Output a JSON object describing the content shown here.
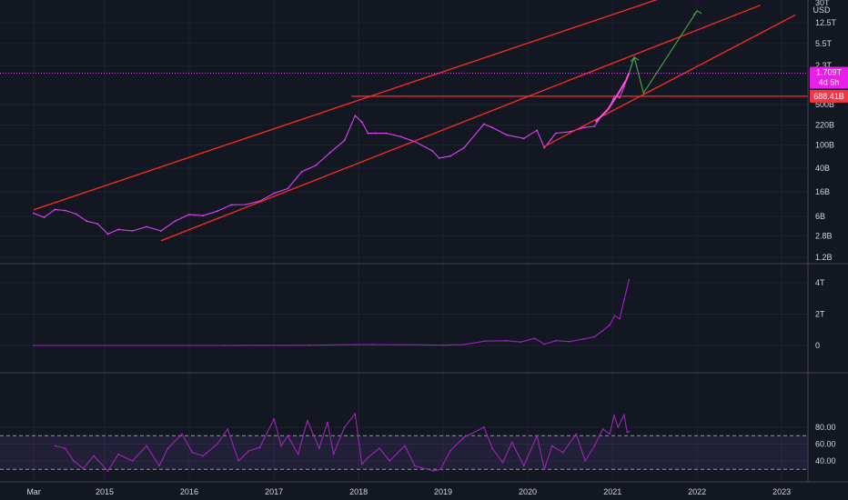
{
  "chart_data": [
    {
      "type": "line",
      "panel": "price",
      "scale": "log",
      "currency_label": "USD",
      "ylim": [
        1000000000.0,
        30000000000000.0
      ],
      "y_ticks": [
        {
          "label": "30T",
          "value": 30000000000000.0
        },
        {
          "label": "12.5T",
          "value": 12500000000000.0
        },
        {
          "label": "5.5T",
          "value": 5500000000000.0
        },
        {
          "label": "2.3T",
          "value": 2300000000000.0
        },
        {
          "label": "500B",
          "value": 500000000000.0
        },
        {
          "label": "220B",
          "value": 220000000000.0
        },
        {
          "label": "100B",
          "value": 100000000000.0
        },
        {
          "label": "40B",
          "value": 40000000000.0
        },
        {
          "label": "16B",
          "value": 16000000000.0
        },
        {
          "label": "6B",
          "value": 6000000000.0
        },
        {
          "label": "2.8B",
          "value": 2800000000.0
        },
        {
          "label": "1.2B",
          "value": 1200000000.0
        }
      ],
      "last_price_tag": {
        "label": "1.709T",
        "sub_label": "4d 5h",
        "value": 1709000000000.0,
        "color": "#e91ee9"
      },
      "level_tag": {
        "label": "688.41B",
        "value": 688410000000.0,
        "color": "#f23645"
      },
      "series": [
        {
          "color": "#e040fb",
          "points": [
            [
              "2014-03-01",
              6800000000.0
            ],
            [
              "2014-04-15",
              5800000000.0
            ],
            [
              "2014-06-01",
              7900000000.0
            ],
            [
              "2014-07-15",
              7600000000.0
            ],
            [
              "2014-09-01",
              6600000000.0
            ],
            [
              "2014-10-15",
              5000000000.0
            ],
            [
              "2014-12-01",
              4500000000.0
            ],
            [
              "2015-01-15",
              3000000000.0
            ],
            [
              "2015-03-01",
              3600000000.0
            ],
            [
              "2015-05-01",
              3400000000.0
            ],
            [
              "2015-07-01",
              4000000000.0
            ],
            [
              "2015-09-01",
              3400000000.0
            ],
            [
              "2015-11-01",
              5000000000.0
            ],
            [
              "2016-01-01",
              6500000000.0
            ],
            [
              "2016-03-01",
              6200000000.0
            ],
            [
              "2016-05-01",
              7400000000.0
            ],
            [
              "2016-07-01",
              9500000000.0
            ],
            [
              "2016-09-01",
              9600000000.0
            ],
            [
              "2016-11-01",
              11000000000.0
            ],
            [
              "2017-01-01",
              15000000000.0
            ],
            [
              "2017-03-01",
              18000000000.0
            ],
            [
              "2017-05-01",
              35000000000.0
            ],
            [
              "2017-07-01",
              45000000000.0
            ],
            [
              "2017-09-01",
              75000000000.0
            ],
            [
              "2017-11-01",
              120000000000.0
            ],
            [
              "2017-12-17",
              320000000000.0
            ],
            [
              "2018-01-15",
              250000000000.0
            ],
            [
              "2018-02-10",
              160000000000.0
            ],
            [
              "2018-03-15",
              160000000000.0
            ],
            [
              "2018-05-01",
              160000000000.0
            ],
            [
              "2018-07-01",
              140000000000.0
            ],
            [
              "2018-09-01",
              115000000000.0
            ],
            [
              "2018-11-15",
              80000000000.0
            ],
            [
              "2018-12-15",
              60000000000.0
            ],
            [
              "2019-02-01",
              65000000000.0
            ],
            [
              "2019-04-01",
              90000000000.0
            ],
            [
              "2019-06-26",
              230000000000.0
            ],
            [
              "2019-08-01",
              200000000000.0
            ],
            [
              "2019-10-01",
              150000000000.0
            ],
            [
              "2019-12-15",
              130000000000.0
            ],
            [
              "2020-02-10",
              180000000000.0
            ],
            [
              "2020-03-13",
              90000000000.0
            ],
            [
              "2020-05-01",
              160000000000.0
            ],
            [
              "2020-07-01",
              170000000000.0
            ],
            [
              "2020-09-01",
              200000000000.0
            ],
            [
              "2020-10-15",
              210000000000.0
            ],
            [
              "2020-11-20",
              340000000000.0
            ],
            [
              "2020-12-20",
              450000000000.0
            ],
            [
              "2021-01-10",
              700000000000.0
            ],
            [
              "2021-02-01",
              650000000000.0
            ],
            [
              "2021-02-20",
              1000000000000.0
            ],
            [
              "2021-03-13",
              1709000000000.0
            ]
          ]
        }
      ]
    },
    {
      "type": "line",
      "panel": "indicator",
      "ylim": [
        -700000000000.0,
        4500000000000.0
      ],
      "y_ticks": [
        {
          "label": "4T",
          "value": 4000000000000.0
        },
        {
          "label": "2T",
          "value": 2000000000000.0
        },
        {
          "label": "0",
          "value": 0
        }
      ],
      "series": [
        {
          "color": "#a020c8",
          "points": [
            [
              "2014-03-01",
              0
            ],
            [
              "2016-06-01",
              2000000000.0
            ],
            [
              "2017-06-01",
              10000000000.0
            ],
            [
              "2017-12-17",
              50000000000.0
            ],
            [
              "2018-03-01",
              60000000000.0
            ],
            [
              "2018-09-01",
              40000000000.0
            ],
            [
              "2019-01-01",
              20000000000.0
            ],
            [
              "2019-04-01",
              60000000000.0
            ],
            [
              "2019-07-01",
              280000000000.0
            ],
            [
              "2019-10-01",
              300000000000.0
            ],
            [
              "2019-12-01",
              220000000000.0
            ],
            [
              "2020-02-01",
              450000000000.0
            ],
            [
              "2020-03-13",
              80000000000.0
            ],
            [
              "2020-05-01",
              300000000000.0
            ],
            [
              "2020-07-01",
              250000000000.0
            ],
            [
              "2020-09-01",
              420000000000.0
            ],
            [
              "2020-10-15",
              550000000000.0
            ],
            [
              "2020-11-20",
              950000000000.0
            ],
            [
              "2020-12-20",
              1300000000000.0
            ],
            [
              "2021-01-10",
              1900000000000.0
            ],
            [
              "2021-02-01",
              1700000000000.0
            ],
            [
              "2021-02-20",
              2900000000000.0
            ],
            [
              "2021-03-13",
              4200000000000.0
            ]
          ]
        }
      ]
    },
    {
      "type": "line",
      "panel": "oscillator",
      "ylim": [
        25,
        100
      ],
      "bands": [
        30,
        70
      ],
      "y_ticks": [
        {
          "label": "80.00",
          "value": 80
        },
        {
          "label": "60.00",
          "value": 60
        },
        {
          "label": "40.00",
          "value": 40
        }
      ],
      "series": [
        {
          "color": "#9c27b0",
          "points": [
            [
              "2014-06-01",
              58
            ],
            [
              "2014-07-15",
              55
            ],
            [
              "2014-08-20",
              40
            ],
            [
              "2014-10-01",
              31
            ],
            [
              "2014-11-15",
              46
            ],
            [
              "2015-01-15",
              28
            ],
            [
              "2015-03-01",
              48
            ],
            [
              "2015-05-01",
              40
            ],
            [
              "2015-07-01",
              58
            ],
            [
              "2015-08-25",
              34
            ],
            [
              "2015-10-01",
              55
            ],
            [
              "2015-12-01",
              72
            ],
            [
              "2016-01-15",
              50
            ],
            [
              "2016-03-01",
              46
            ],
            [
              "2016-05-01",
              60
            ],
            [
              "2016-06-15",
              78
            ],
            [
              "2016-08-01",
              40
            ],
            [
              "2016-09-15",
              52
            ],
            [
              "2016-11-01",
              56
            ],
            [
              "2017-01-01",
              90
            ],
            [
              "2017-02-01",
              58
            ],
            [
              "2017-03-01",
              70
            ],
            [
              "2017-04-15",
              48
            ],
            [
              "2017-05-25",
              88
            ],
            [
              "2017-07-15",
              55
            ],
            [
              "2017-08-20",
              86
            ],
            [
              "2017-09-15",
              48
            ],
            [
              "2017-11-01",
              80
            ],
            [
              "2017-12-17",
              96
            ],
            [
              "2018-01-15",
              36
            ],
            [
              "2018-02-10",
              44
            ],
            [
              "2018-04-01",
              55
            ],
            [
              "2018-05-15",
              40
            ],
            [
              "2018-07-20",
              58
            ],
            [
              "2018-09-01",
              34
            ],
            [
              "2018-11-20",
              28
            ],
            [
              "2018-12-20",
              30
            ],
            [
              "2019-02-01",
              52
            ],
            [
              "2019-04-01",
              68
            ],
            [
              "2019-06-26",
              80
            ],
            [
              "2019-08-01",
              55
            ],
            [
              "2019-09-15",
              38
            ],
            [
              "2019-10-25",
              62
            ],
            [
              "2019-12-15",
              34
            ],
            [
              "2020-02-10",
              70
            ],
            [
              "2020-03-13",
              30
            ],
            [
              "2020-04-15",
              58
            ],
            [
              "2020-06-01",
              50
            ],
            [
              "2020-07-28",
              72
            ],
            [
              "2020-09-05",
              40
            ],
            [
              "2020-10-15",
              58
            ],
            [
              "2020-11-20",
              78
            ],
            [
              "2020-12-20",
              72
            ],
            [
              "2021-01-08",
              94
            ],
            [
              "2021-01-25",
              80
            ],
            [
              "2021-02-20",
              95
            ],
            [
              "2021-03-05",
              74
            ],
            [
              "2021-03-13",
              75
            ]
          ]
        }
      ]
    }
  ],
  "x_axis": {
    "ticks": [
      {
        "label": "Mar",
        "date": "2014-03-01"
      },
      {
        "label": "2015",
        "date": "2015-01-01"
      },
      {
        "label": "2016",
        "date": "2016-01-01"
      },
      {
        "label": "2017",
        "date": "2017-01-01"
      },
      {
        "label": "2018",
        "date": "2018-01-01"
      },
      {
        "label": "2019",
        "date": "2019-01-01"
      },
      {
        "label": "2020",
        "date": "2020-01-01"
      },
      {
        "label": "2021",
        "date": "2021-01-01"
      },
      {
        "label": "2022",
        "date": "2022-01-01"
      },
      {
        "label": "2023",
        "date": "2023-01-01"
      }
    ]
  },
  "drawings": {
    "red_color": "#ff2a2a",
    "green_color": "#43a047",
    "pink_color": "#ff4fd8",
    "channel_top": [
      [
        "2014-03-01",
        7800000000.0
      ],
      [
        "2021-10-01",
        40000000000000.0
      ]
    ],
    "channel_mid": [
      [
        "2015-09-01",
        2300000000.0
      ],
      [
        "2022-10-01",
        25000000000000.0
      ]
    ],
    "channel_low": [
      [
        "2020-03-13",
        95000000000.0
      ],
      [
        "2023-03-01",
        17000000000000.0
      ]
    ],
    "horizontal_level": 688410000000.0,
    "projection": [
      [
        "2021-03-13",
        1709000000000.0
      ],
      [
        "2021-04-05",
        3200000000000.0
      ],
      [
        "2021-05-15",
        780000000000.0
      ],
      [
        "2022-01-01",
        20000000000000.0
      ]
    ],
    "projection_arrows": [
      [
        "2021-04-05",
        3200000000000.0
      ],
      [
        "2022-01-01",
        20000000000000.0
      ]
    ],
    "curve": [
      [
        "2020-10-20",
        250000000000.0
      ],
      [
        "2020-12-10",
        400000000000.0
      ],
      [
        "2021-01-20",
        700000000000.0
      ],
      [
        "2021-03-01",
        1300000000000.0
      ],
      [
        "2021-03-13",
        1709000000000.0
      ]
    ]
  }
}
